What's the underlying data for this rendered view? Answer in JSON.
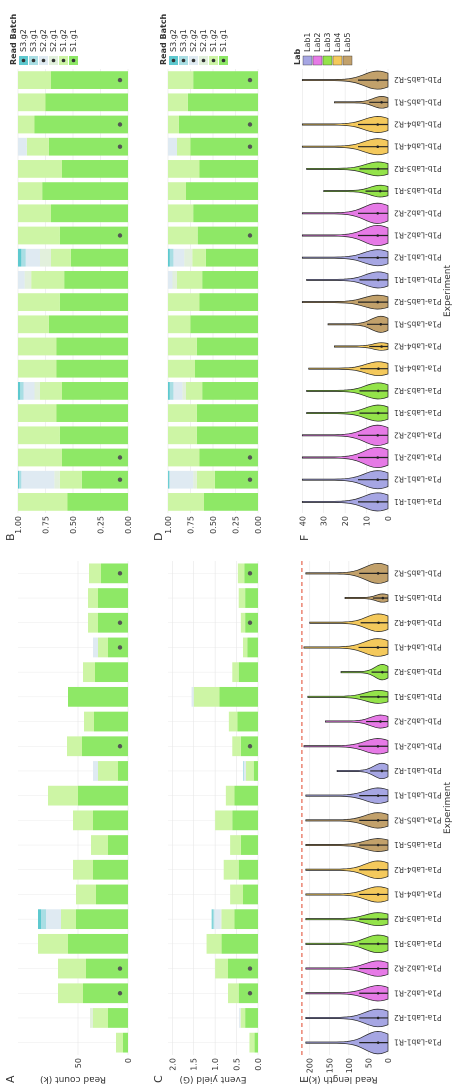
{
  "colors": {
    "S1.g1": "#8ee866",
    "S1.g2": "#cdf5a5",
    "S2.g1": "#e2f0dc",
    "S2.g2": "#dfeaf2",
    "S3.g1": "#a9dee4",
    "S3.g2": "#5ec9cf",
    "Lab1": "#a6a6e3",
    "Lab2": "#e67ae6",
    "Lab3": "#94e34a",
    "Lab4": "#f4c95c",
    "Lab5": "#c2a16b",
    "grid": "#e6e6e6",
    "dot": "#555555",
    "dashed": "#e0452b"
  },
  "experiments": [
    "P1a-Lab1-R1",
    "P1a-Lab1-R2",
    "P1a-Lab2-R1",
    "P1a-Lab2-R2",
    "P1a-Lab3-R1",
    "P1a-Lab3-R2",
    "P1a-Lab4-R1",
    "P1a-Lab4-R2",
    "P1a-Lab5-R1",
    "P1a-Lab5-R2",
    "P1b-Lab1-R1",
    "P1b-Lab1-R2",
    "P1b-Lab2-R1",
    "P1b-Lab2-R2",
    "P1b-Lab3-R1",
    "P1b-Lab3-R2",
    "P1b-Lab4-R1",
    "P1b-Lab4-R2",
    "P1b-Lab5-R1",
    "P1b-Lab5-R2"
  ],
  "legend_batch": {
    "title": "Read Batch",
    "items": [
      "S3.g2",
      "S3.g1",
      "S2.g2",
      "S2.g1",
      "S1.g2",
      "S1.g1"
    ]
  },
  "legend_lab": {
    "title": "Lab",
    "items": [
      "Lab1",
      "Lab2",
      "Lab3",
      "Lab4",
      "Lab5"
    ]
  },
  "chart_data": [
    {
      "panel": "A",
      "type": "bar",
      "stacked": true,
      "ylabel": "Read count (k)",
      "ylim": [
        0,
        110
      ],
      "ticks": [
        0,
        50
      ],
      "dots": [
        false,
        false,
        true,
        true,
        false,
        false,
        false,
        false,
        false,
        false,
        false,
        false,
        true,
        false,
        false,
        false,
        true,
        true,
        false,
        true
      ],
      "series": [
        {
          "name": "S1.g1",
          "values": [
            5,
            20,
            45,
            42,
            60,
            52,
            32,
            35,
            20,
            35,
            50,
            10,
            46,
            34,
            60,
            33,
            20,
            30,
            30,
            27
          ]
        },
        {
          "name": "S1.g2",
          "values": [
            7,
            15,
            25,
            28,
            30,
            15,
            20,
            20,
            17,
            20,
            30,
            20,
            15,
            10,
            0,
            12,
            10,
            10,
            10,
            12
          ]
        },
        {
          "name": "S2.g1",
          "values": [
            0,
            3,
            0,
            0,
            0,
            0,
            0,
            0,
            0,
            0,
            0,
            0,
            0,
            0,
            0,
            0,
            0,
            0,
            0,
            0
          ]
        },
        {
          "name": "S2.g2",
          "values": [
            0,
            0,
            0,
            0,
            0,
            15,
            0,
            0,
            0,
            0,
            0,
            5,
            0,
            0,
            0,
            0,
            5,
            0,
            0,
            0
          ]
        },
        {
          "name": "S3.g1",
          "values": [
            0,
            0,
            0,
            0,
            0,
            5,
            0,
            0,
            0,
            0,
            0,
            0,
            0,
            0,
            0,
            0,
            0,
            0,
            0,
            0
          ]
        },
        {
          "name": "S3.g2",
          "values": [
            0,
            0,
            0,
            0,
            0,
            3,
            0,
            0,
            0,
            0,
            0,
            0,
            0,
            0,
            0,
            0,
            0,
            0,
            0,
            0
          ]
        }
      ]
    },
    {
      "panel": "B",
      "type": "bar",
      "stacked": true,
      "ylim": [
        0,
        1
      ],
      "ticks": [
        0,
        0.25,
        0.5,
        0.75,
        1.0
      ],
      "tick_labels": [
        "0.00",
        "0.25",
        "0.50",
        "0.75",
        "1.00"
      ],
      "dots": [
        false,
        true,
        true,
        false,
        false,
        false,
        false,
        false,
        false,
        false,
        false,
        false,
        true,
        false,
        false,
        false,
        true,
        true,
        false,
        true
      ],
      "series": [
        {
          "name": "S1.g1",
          "values": [
            0.55,
            0.42,
            0.6,
            0.62,
            0.65,
            0.6,
            0.65,
            0.65,
            0.72,
            0.62,
            0.58,
            0.52,
            0.62,
            0.7,
            0.78,
            0.6,
            0.72,
            0.85,
            0.75,
            0.7
          ]
        },
        {
          "name": "S1.g2",
          "values": [
            0.45,
            0.2,
            0.4,
            0.38,
            0.35,
            0.2,
            0.35,
            0.35,
            0.28,
            0.38,
            0.3,
            0.18,
            0.38,
            0.3,
            0.22,
            0.4,
            0.2,
            0.15,
            0.25,
            0.3
          ]
        },
        {
          "name": "S2.g1",
          "values": [
            0,
            0.05,
            0,
            0,
            0,
            0.05,
            0,
            0,
            0,
            0,
            0.06,
            0.1,
            0,
            0,
            0,
            0,
            0,
            0,
            0,
            0
          ]
        },
        {
          "name": "S2.g2",
          "values": [
            0,
            0.3,
            0,
            0,
            0,
            0.1,
            0,
            0,
            0,
            0,
            0.06,
            0.13,
            0,
            0,
            0,
            0,
            0.08,
            0,
            0,
            0
          ]
        },
        {
          "name": "S3.g1",
          "values": [
            0,
            0.02,
            0,
            0,
            0,
            0.03,
            0,
            0,
            0,
            0,
            0,
            0.04,
            0,
            0,
            0,
            0,
            0,
            0,
            0,
            0
          ]
        },
        {
          "name": "S3.g2",
          "values": [
            0,
            0.01,
            0,
            0,
            0,
            0.02,
            0,
            0,
            0,
            0,
            0,
            0.03,
            0,
            0,
            0,
            0,
            0,
            0,
            0,
            0
          ]
        }
      ]
    },
    {
      "panel": "C",
      "type": "bar",
      "stacked": true,
      "ylabel": "Event yield (G)",
      "ylim": [
        0,
        2.1
      ],
      "ticks": [
        0,
        0.5,
        1.0,
        1.5,
        2.0
      ],
      "tick_labels": [
        "0.0",
        "0.5",
        "1.0",
        "1.5",
        "2.0"
      ],
      "dots": [
        false,
        false,
        true,
        true,
        false,
        false,
        false,
        false,
        false,
        false,
        false,
        false,
        true,
        false,
        false,
        false,
        false,
        true,
        false,
        true
      ],
      "series": [
        {
          "name": "S1.g1",
          "values": [
            0.08,
            0.3,
            0.45,
            0.7,
            0.85,
            0.55,
            0.35,
            0.45,
            0.4,
            0.6,
            0.55,
            0.1,
            0.4,
            0.48,
            0.9,
            0.45,
            0.25,
            0.3,
            0.3,
            0.32
          ]
        },
        {
          "name": "S1.g2",
          "values": [
            0.12,
            0.1,
            0.25,
            0.3,
            0.35,
            0.3,
            0.3,
            0.35,
            0.25,
            0.4,
            0.2,
            0.18,
            0.2,
            0.2,
            0.6,
            0.15,
            0.1,
            0.1,
            0.15,
            0.15
          ]
        },
        {
          "name": "S2.g1",
          "values": [
            0,
            0.02,
            0,
            0,
            0,
            0.02,
            0,
            0,
            0,
            0,
            0,
            0,
            0,
            0,
            0,
            0,
            0,
            0,
            0,
            0
          ]
        },
        {
          "name": "S2.g2",
          "values": [
            0,
            0.02,
            0,
            0,
            0,
            0.15,
            0,
            0,
            0,
            0,
            0,
            0.05,
            0,
            0,
            0.05,
            0,
            0,
            0,
            0,
            0
          ]
        },
        {
          "name": "S3.g1",
          "values": [
            0,
            0,
            0,
            0,
            0,
            0.04,
            0,
            0,
            0,
            0,
            0,
            0.02,
            0,
            0,
            0,
            0,
            0,
            0,
            0,
            0
          ]
        },
        {
          "name": "S3.g2",
          "values": [
            0,
            0,
            0,
            0,
            0,
            0.02,
            0,
            0,
            0,
            0,
            0,
            0,
            0,
            0,
            0,
            0,
            0,
            0,
            0,
            0
          ]
        }
      ]
    },
    {
      "panel": "D",
      "type": "bar",
      "stacked": true,
      "ylim": [
        0,
        1
      ],
      "ticks": [
        0,
        0.25,
        0.5,
        0.75,
        1.0
      ],
      "tick_labels": [
        "0.00",
        "0.25",
        "0.50",
        "0.75",
        "1.00"
      ],
      "dots": [
        false,
        true,
        true,
        false,
        false,
        false,
        false,
        false,
        false,
        false,
        false,
        false,
        true,
        false,
        false,
        false,
        true,
        true,
        false,
        true
      ],
      "series": [
        {
          "name": "S1.g1",
          "values": [
            0.6,
            0.48,
            0.65,
            0.68,
            0.68,
            0.62,
            0.7,
            0.68,
            0.75,
            0.65,
            0.62,
            0.58,
            0.67,
            0.72,
            0.8,
            0.65,
            0.75,
            0.88,
            0.78,
            0.72
          ]
        },
        {
          "name": "S1.g2",
          "values": [
            0.4,
            0.2,
            0.35,
            0.32,
            0.32,
            0.18,
            0.3,
            0.32,
            0.25,
            0.35,
            0.28,
            0.15,
            0.33,
            0.28,
            0.2,
            0.35,
            0.15,
            0.12,
            0.22,
            0.28
          ]
        },
        {
          "name": "S2.g1",
          "values": [
            0,
            0.04,
            0,
            0,
            0,
            0.04,
            0,
            0,
            0,
            0,
            0.05,
            0.09,
            0,
            0,
            0,
            0,
            0,
            0,
            0,
            0
          ]
        },
        {
          "name": "S2.g2",
          "values": [
            0,
            0.26,
            0,
            0,
            0,
            0.1,
            0,
            0,
            0,
            0,
            0.05,
            0.12,
            0,
            0,
            0,
            0,
            0.1,
            0,
            0,
            0
          ]
        },
        {
          "name": "S3.g1",
          "values": [
            0,
            0.01,
            0,
            0,
            0,
            0.04,
            0,
            0,
            0,
            0,
            0,
            0.04,
            0,
            0,
            0,
            0,
            0,
            0,
            0,
            0
          ]
        },
        {
          "name": "S3.g2",
          "values": [
            0,
            0.01,
            0,
            0,
            0,
            0.02,
            0,
            0,
            0,
            0,
            0,
            0.02,
            0,
            0,
            0,
            0,
            0,
            0,
            0,
            0
          ]
        }
      ]
    },
    {
      "panel": "E",
      "type": "violin",
      "xlabel": "Experiment",
      "ylabel": "Read length (k)",
      "ylim": [
        0,
        230
      ],
      "ticks": [
        0,
        50,
        100,
        150,
        200
      ],
      "reference_line": 220,
      "max_values": [
        210,
        210,
        210,
        210,
        210,
        210,
        210,
        210,
        210,
        210,
        210,
        130,
        215,
        160,
        205,
        120,
        215,
        200,
        110,
        210
      ],
      "widths": [
        0.9,
        0.7,
        0.6,
        0.6,
        0.7,
        0.5,
        0.6,
        0.7,
        0.5,
        0.6,
        0.6,
        0.6,
        0.6,
        0.5,
        0.5,
        0.6,
        0.7,
        0.7,
        0.3,
        0.8
      ],
      "labs": [
        "Lab1",
        "Lab1",
        "Lab2",
        "Lab2",
        "Lab3",
        "Lab3",
        "Lab4",
        "Lab4",
        "Lab5",
        "Lab5",
        "Lab1",
        "Lab1",
        "Lab2",
        "Lab2",
        "Lab3",
        "Lab3",
        "Lab4",
        "Lab4",
        "Lab5",
        "Lab5"
      ]
    },
    {
      "panel": "F",
      "type": "violin",
      "xlabel": "Experiment",
      "ylim": [
        0,
        42
      ],
      "ticks": [
        0,
        10,
        20,
        30,
        40
      ],
      "max_values": [
        40,
        40,
        40,
        40,
        38,
        38,
        37,
        25,
        28,
        40,
        38,
        40,
        40,
        40,
        30,
        38,
        40,
        40,
        25,
        40
      ],
      "widths": [
        0.8,
        0.8,
        0.9,
        0.9,
        0.7,
        0.7,
        0.6,
        0.3,
        0.7,
        0.6,
        0.7,
        0.7,
        0.9,
        0.9,
        0.5,
        0.6,
        0.7,
        0.7,
        0.5,
        0.8
      ],
      "labs": [
        "Lab1",
        "Lab1",
        "Lab2",
        "Lab2",
        "Lab3",
        "Lab3",
        "Lab4",
        "Lab4",
        "Lab5",
        "Lab5",
        "Lab1",
        "Lab1",
        "Lab2",
        "Lab2",
        "Lab3",
        "Lab3",
        "Lab4",
        "Lab4",
        "Lab5",
        "Lab5"
      ]
    }
  ],
  "panel_letters": [
    "A",
    "B",
    "C",
    "D",
    "E",
    "F"
  ]
}
